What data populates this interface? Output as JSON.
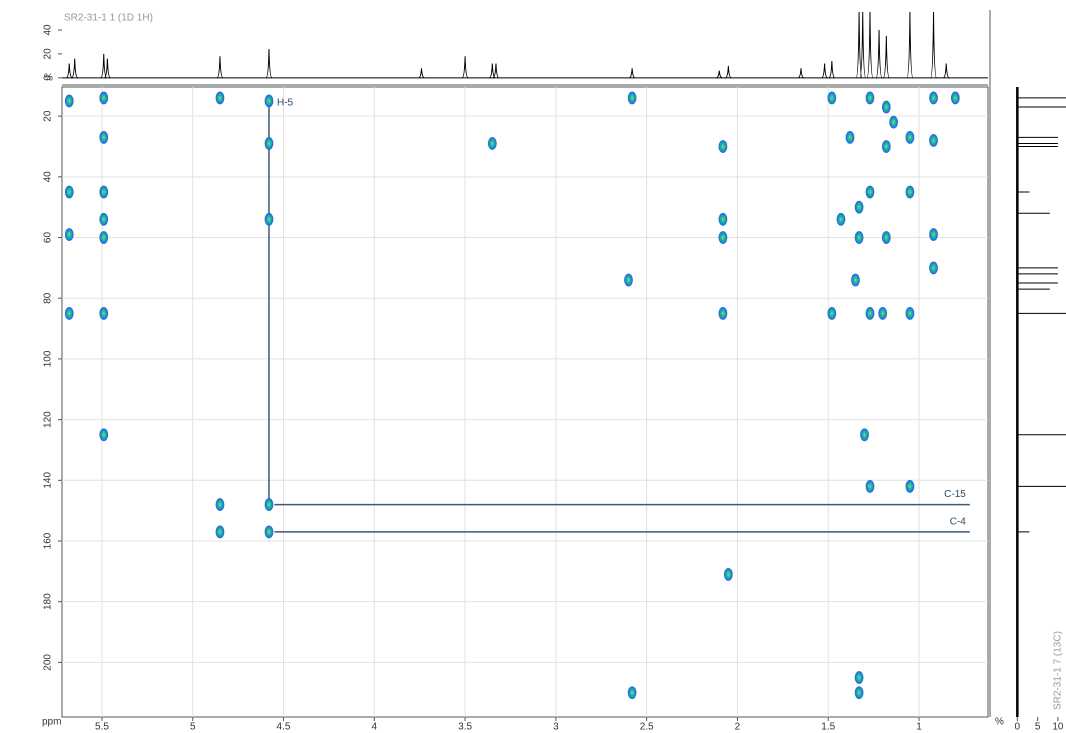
{
  "chart_data": {
    "type": "scatter",
    "xlabel": "ppm",
    "xlim": [
      5.72,
      0.62
    ],
    "ylim": [
      10.4,
      218
    ],
    "xticks": [
      5.5,
      5,
      4.5,
      4,
      3.5,
      3,
      2.5,
      2,
      1.5,
      1
    ],
    "yticks": [
      20,
      40,
      60,
      80,
      100,
      120,
      140,
      160,
      180,
      200
    ],
    "grid": true,
    "series": [
      {
        "name": "cross peaks",
        "color": "#1f6fe0",
        "x": [
          5.68,
          5.49,
          5.49,
          5.68,
          5.49,
          5.49,
          5.68,
          5.49,
          5.68,
          5.49,
          5.49,
          4.85,
          4.85,
          4.85,
          4.58,
          4.58,
          4.58,
          4.58,
          4.58,
          3.35,
          2.58,
          2.6,
          2.58,
          2.08,
          2.08,
          2.08,
          2.08,
          2.05,
          1.48,
          1.38,
          1.33,
          1.33,
          1.35,
          1.3,
          1.27,
          1.27,
          1.27,
          1.27,
          1.33,
          1.33,
          1.18,
          1.18,
          1.14,
          1.05,
          1.05,
          1.05,
          1.05,
          0.92,
          0.92,
          0.92,
          0.92,
          0.8,
          1.2,
          1.18,
          1.43,
          1.48
        ],
        "values": [
          15,
          14,
          27,
          45,
          45,
          54,
          59,
          60,
          85,
          85,
          125,
          14,
          148,
          157,
          15,
          29,
          54,
          148,
          157,
          29,
          14,
          74,
          210,
          30,
          54,
          60,
          85,
          171,
          14,
          27,
          50,
          60,
          74,
          125,
          14,
          45,
          85,
          142,
          205,
          210,
          17,
          30,
          22,
          27,
          45,
          85,
          142,
          28,
          59,
          70,
          14,
          14,
          85,
          60,
          54,
          85
        ]
      }
    ],
    "annotations": [
      {
        "text": "H-5",
        "x": 4.58,
        "y": 15,
        "x2": 4.58,
        "y2": 148
      },
      {
        "text": "C-15",
        "x": 4.55,
        "y": 148,
        "x2": 0.72,
        "y2": 148
      },
      {
        "text": "C-4",
        "x": 4.55,
        "y": 157,
        "x2": 0.72,
        "y2": 157
      }
    ],
    "top_spectrum": {
      "type": "line",
      "title": "SR2-31-1 1 (1D 1H)",
      "ylabel": "%",
      "ylim": [
        -6,
        55
      ],
      "yticks": [
        0,
        20,
        40
      ],
      "x": [
        5.68,
        5.65,
        5.49,
        5.47,
        4.85,
        4.58,
        3.74,
        3.5,
        3.35,
        3.33,
        2.58,
        2.1,
        2.05,
        1.65,
        1.52,
        1.48,
        1.33,
        1.31,
        1.27,
        1.22,
        1.18,
        1.05,
        0.92,
        0.85
      ],
      "values": [
        12,
        16,
        20,
        16,
        18,
        24,
        8,
        18,
        12,
        12,
        8,
        6,
        10,
        8,
        12,
        14,
        55,
        55,
        55,
        40,
        35,
        55,
        55,
        12
      ]
    },
    "side_spectrum": {
      "type": "line",
      "title": "SR2-31-1 7 (13C)",
      "xlabel": "%",
      "xlim": [
        -6,
        12
      ],
      "xticks": [
        0,
        5,
        10
      ],
      "y": [
        14,
        17,
        27,
        29,
        30,
        45,
        52,
        70,
        72,
        75,
        77,
        85,
        125,
        142,
        157
      ],
      "values": [
        14,
        12,
        10,
        10,
        10,
        3,
        8,
        10,
        10,
        10,
        8,
        12,
        12,
        12,
        3
      ]
    }
  }
}
